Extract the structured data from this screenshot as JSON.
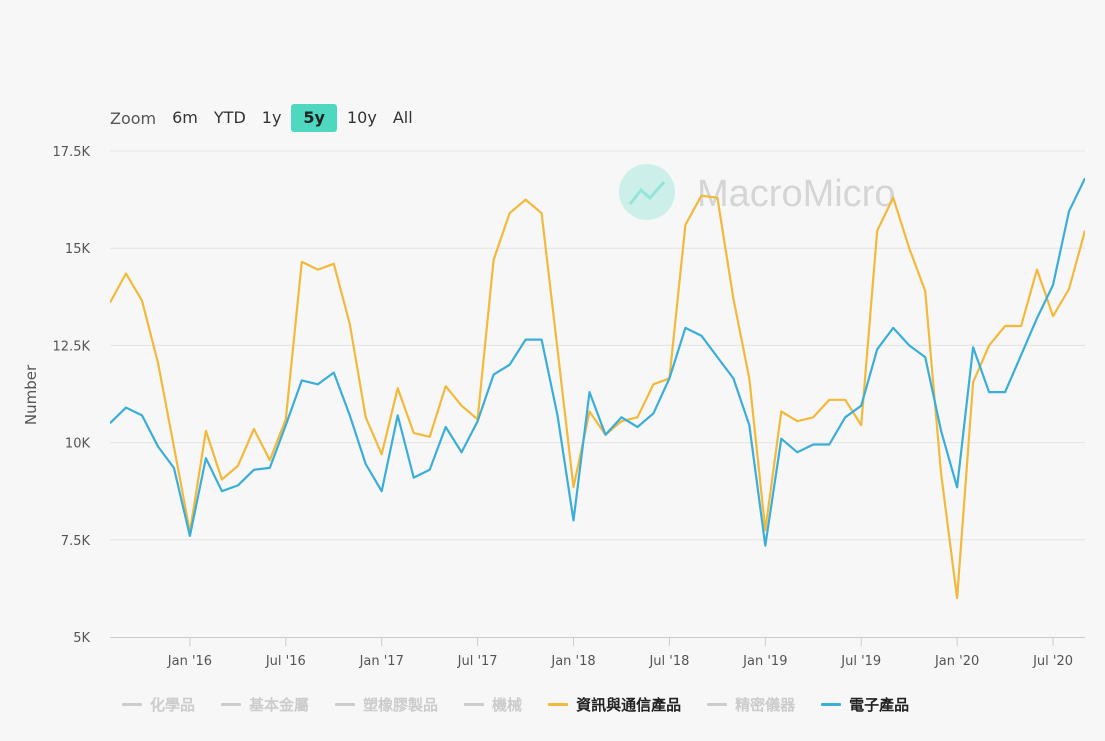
{
  "zoom": {
    "label": "Zoom",
    "buttons": [
      "6m",
      "YTD",
      "1y",
      "5y",
      "10y",
      "All"
    ],
    "active": "5y"
  },
  "watermark": {
    "text": "MacroMicro"
  },
  "colors": {
    "info_comm": "#f2b93b",
    "electronic": "#3aaed8",
    "hidden": "#cccccc",
    "grid": "#e4e4e4",
    "axis_text": "#555555",
    "watermark": "#4fd8c0"
  },
  "chart_data": {
    "type": "line",
    "ylabel": "Number",
    "ylim": [
      5000,
      17500
    ],
    "y_ticks": [
      5000,
      7500,
      10000,
      12500,
      15000,
      17500
    ],
    "y_tick_labels": [
      "5K",
      "7.5K",
      "10K",
      "12.5K",
      "15K",
      "17.5K"
    ],
    "x_start": "2015-08",
    "x_end": "2020-09",
    "x_ticks": [
      "2016-01",
      "2016-07",
      "2017-01",
      "2017-07",
      "2018-01",
      "2018-07",
      "2019-01",
      "2019-07",
      "2020-01",
      "2020-07"
    ],
    "x_tick_labels": [
      "Jan '16",
      "Jul '16",
      "Jan '17",
      "Jul '17",
      "Jan '18",
      "Jul '18",
      "Jan '19",
      "Jul '19",
      "Jan '20",
      "Jul '20"
    ],
    "series": [
      {
        "name": "資訊與通信產品",
        "color": "#f2b93b",
        "x": [
          "2015-08",
          "2015-09",
          "2015-10",
          "2015-11",
          "2015-12",
          "2016-01",
          "2016-02",
          "2016-03",
          "2016-04",
          "2016-05",
          "2016-06",
          "2016-07",
          "2016-08",
          "2016-09",
          "2016-10",
          "2016-11",
          "2016-12",
          "2017-01",
          "2017-02",
          "2017-03",
          "2017-04",
          "2017-05",
          "2017-06",
          "2017-07",
          "2017-08",
          "2017-09",
          "2017-10",
          "2017-11",
          "2017-12",
          "2018-01",
          "2018-02",
          "2018-03",
          "2018-04",
          "2018-05",
          "2018-06",
          "2018-07",
          "2018-08",
          "2018-09",
          "2018-10",
          "2018-11",
          "2018-12",
          "2019-01",
          "2019-02",
          "2019-03",
          "2019-04",
          "2019-05",
          "2019-06",
          "2019-07",
          "2019-08",
          "2019-09",
          "2019-10",
          "2019-11",
          "2019-12",
          "2020-01",
          "2020-02",
          "2020-03",
          "2020-04",
          "2020-05",
          "2020-06",
          "2020-07",
          "2020-08",
          "2020-09"
        ],
        "values": [
          13600,
          14350,
          13650,
          12050,
          9900,
          7700,
          10300,
          9050,
          9400,
          10350,
          9550,
          10600,
          14650,
          14450,
          14600,
          13050,
          10650,
          9700,
          11400,
          10250,
          10150,
          11450,
          10950,
          10600,
          14700,
          15900,
          16250,
          15900,
          12400,
          8850,
          10800,
          10200,
          10550,
          10650,
          11500,
          11650,
          15600,
          16350,
          16300,
          13700,
          11650,
          7750,
          10800,
          10550,
          10650,
          11100,
          11100,
          10450,
          15450,
          16300,
          15000,
          13900,
          9200,
          6000,
          11550,
          12500,
          13000,
          13000,
          14450,
          13250,
          13950,
          15450
        ]
      },
      {
        "name": "電子產品",
        "color": "#3aaed8",
        "x": [
          "2015-08",
          "2015-09",
          "2015-10",
          "2015-11",
          "2015-12",
          "2016-01",
          "2016-02",
          "2016-03",
          "2016-04",
          "2016-05",
          "2016-06",
          "2016-07",
          "2016-08",
          "2016-09",
          "2016-10",
          "2016-11",
          "2016-12",
          "2017-01",
          "2017-02",
          "2017-03",
          "2017-04",
          "2017-05",
          "2017-06",
          "2017-07",
          "2017-08",
          "2017-09",
          "2017-10",
          "2017-11",
          "2017-12",
          "2018-01",
          "2018-02",
          "2018-03",
          "2018-04",
          "2018-05",
          "2018-06",
          "2018-07",
          "2018-08",
          "2018-09",
          "2018-10",
          "2018-11",
          "2018-12",
          "2019-01",
          "2019-02",
          "2019-03",
          "2019-04",
          "2019-05",
          "2019-06",
          "2019-07",
          "2019-08",
          "2019-09",
          "2019-10",
          "2019-11",
          "2019-12",
          "2020-01",
          "2020-02",
          "2020-03",
          "2020-04",
          "2020-05",
          "2020-06",
          "2020-07",
          "2020-08",
          "2020-09"
        ],
        "values": [
          10500,
          10900,
          10700,
          9900,
          9350,
          7600,
          9600,
          8750,
          8900,
          9300,
          9350,
          10450,
          11600,
          11500,
          11800,
          10700,
          9450,
          8750,
          10700,
          9100,
          9300,
          10400,
          9750,
          10550,
          11750,
          12000,
          12650,
          12650,
          10700,
          8000,
          11300,
          10200,
          10650,
          10400,
          10750,
          11650,
          12950,
          12750,
          12200,
          11650,
          10450,
          7350,
          10100,
          9750,
          9950,
          9950,
          10650,
          10950,
          12400,
          12950,
          12500,
          12200,
          10300,
          8850,
          12450,
          11300,
          11300,
          12250,
          13200,
          14050,
          15950,
          16800
        ]
      }
    ]
  },
  "legend": [
    {
      "label": "化學品",
      "color": "#cccccc",
      "shown": false
    },
    {
      "label": "基本金屬",
      "color": "#cccccc",
      "shown": false
    },
    {
      "label": "塑橡膠製品",
      "color": "#cccccc",
      "shown": false
    },
    {
      "label": "機械",
      "color": "#cccccc",
      "shown": false
    },
    {
      "label": "資訊與通信產品",
      "color": "#f2b93b",
      "shown": true
    },
    {
      "label": "精密儀器",
      "color": "#cccccc",
      "shown": false
    },
    {
      "label": "電子產品",
      "color": "#3aaed8",
      "shown": true
    }
  ]
}
